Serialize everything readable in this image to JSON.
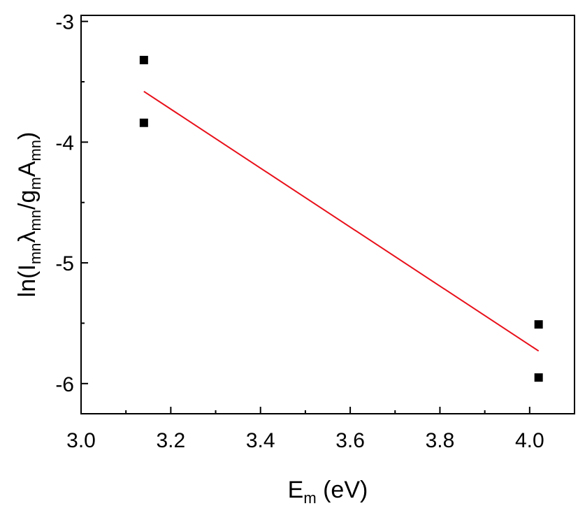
{
  "chart_data": {
    "type": "scatter",
    "xlabel": {
      "main": "E",
      "sub": "m",
      "rest": " (eV)"
    },
    "ylabel": {
      "parts": [
        {
          "t": "ln(I"
        },
        {
          "t": "mn",
          "sub": true
        },
        {
          "t": "λ"
        },
        {
          "t": "mn",
          "sub": true
        },
        {
          "t": "/g"
        },
        {
          "t": "m",
          "sub": true
        },
        {
          "t": "A"
        },
        {
          "t": "mn",
          "sub": true
        },
        {
          "t": ")"
        }
      ]
    },
    "xlim": [
      3.0,
      4.1
    ],
    "ylim": [
      -6.25,
      -2.95
    ],
    "xticks": [
      3.0,
      3.2,
      3.4,
      3.6,
      3.8,
      4.0
    ],
    "xtick_labels": [
      "3.0",
      "3.2",
      "3.4",
      "3.6",
      "3.8",
      "4.0"
    ],
    "yticks": [
      -3,
      -4,
      -5,
      -6
    ],
    "ytick_labels": [
      "-3",
      "-4",
      "-5",
      "-6"
    ],
    "grid": false,
    "points": [
      {
        "x": 3.14,
        "y": -3.32
      },
      {
        "x": 3.14,
        "y": -3.84
      },
      {
        "x": 4.02,
        "y": -5.51
      },
      {
        "x": 4.02,
        "y": -5.95
      }
    ],
    "fit_line": {
      "x": [
        3.14,
        4.02
      ],
      "y": [
        -3.58,
        -5.73
      ],
      "color": "#e8101a"
    },
    "marker_color": "#000000"
  }
}
